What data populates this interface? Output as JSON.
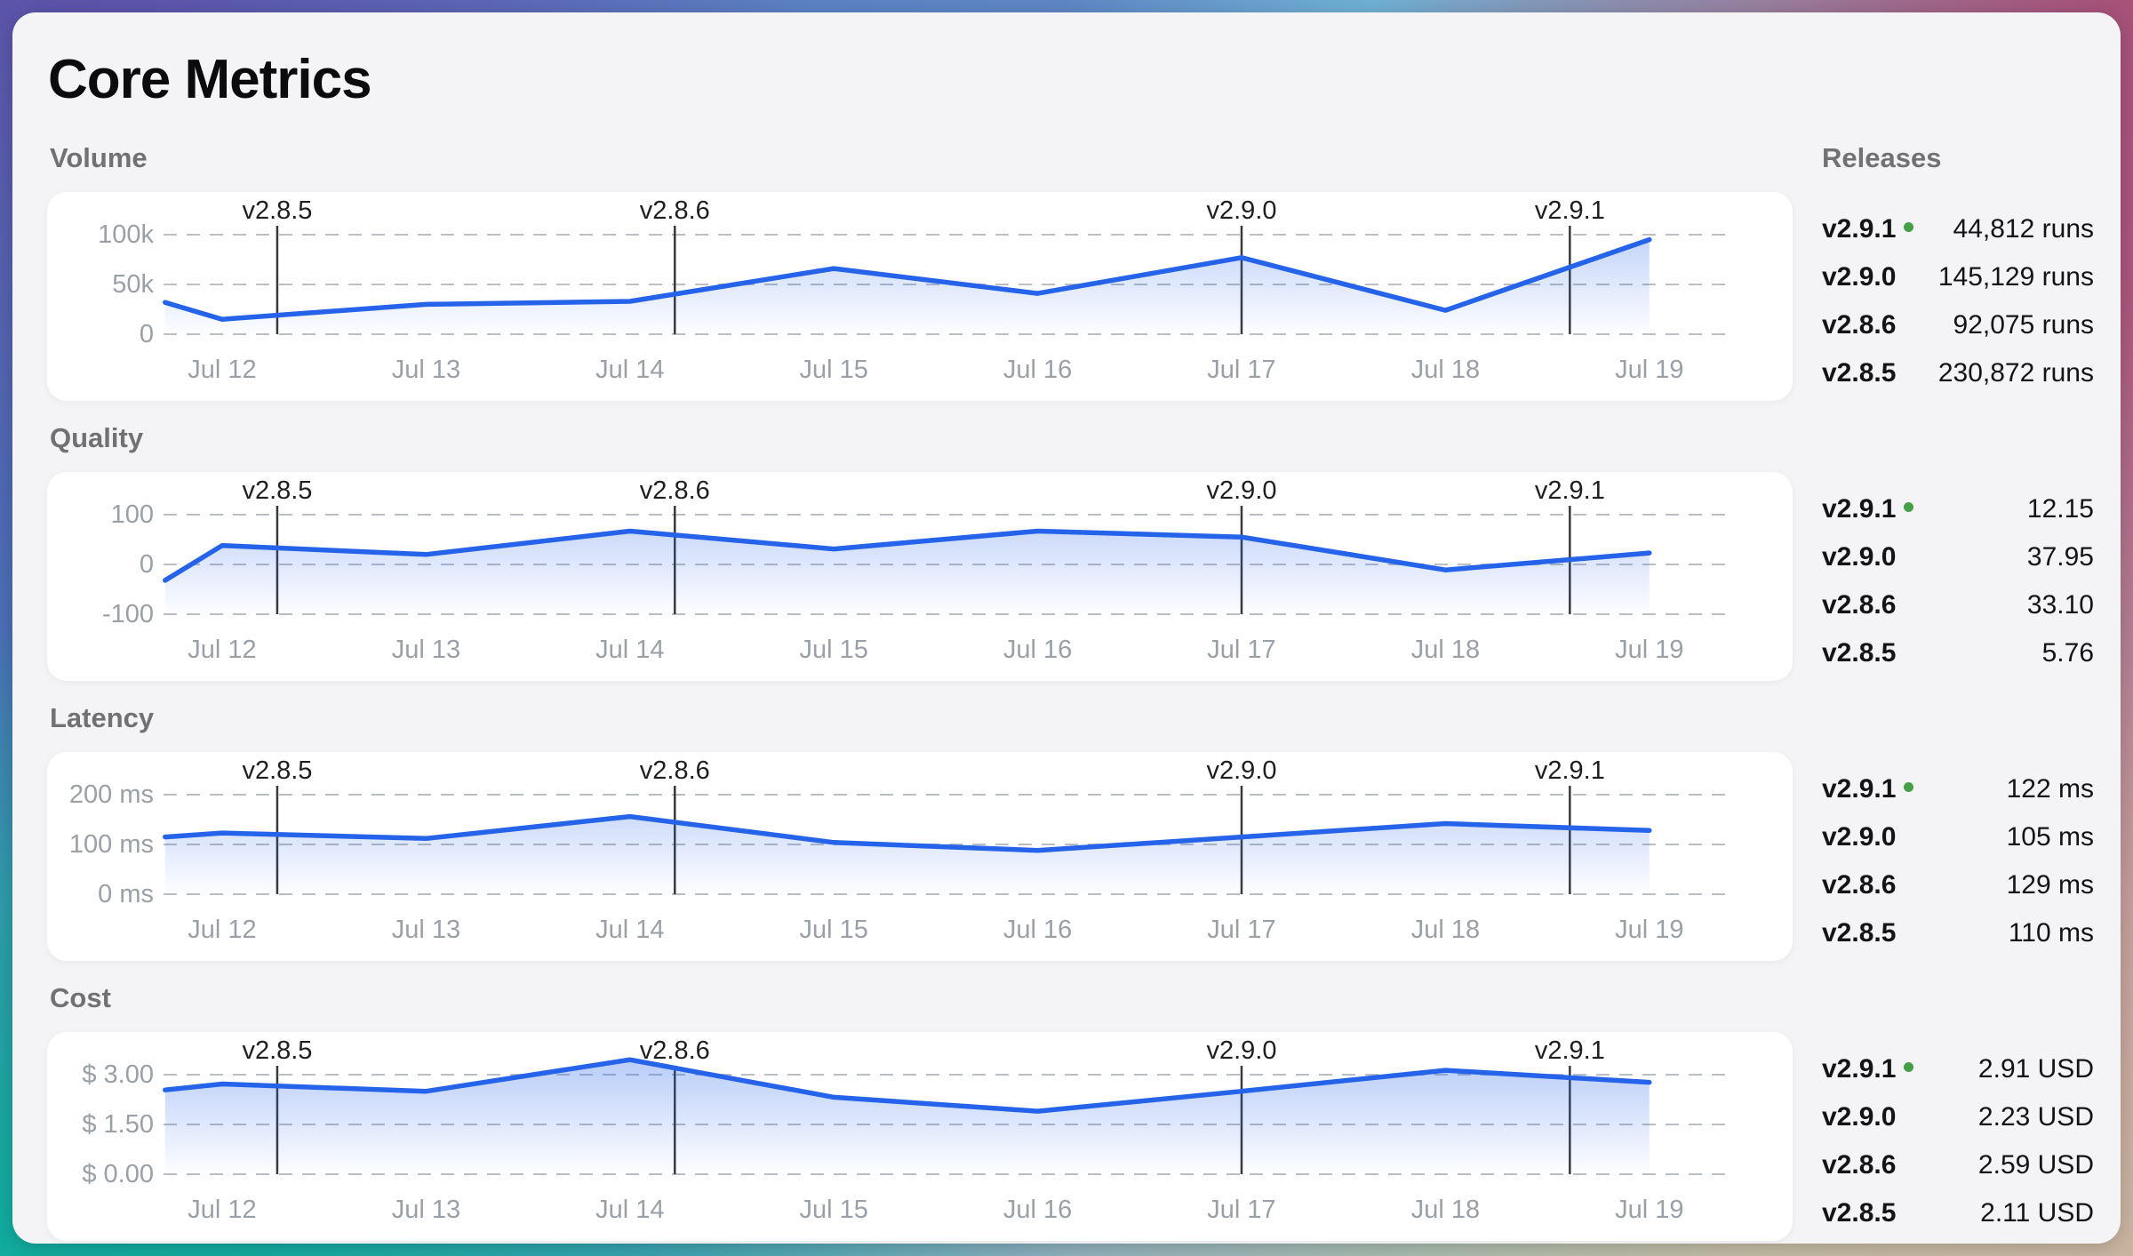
{
  "title": "Core Metrics",
  "releases_title": "Releases",
  "colors": {
    "line": "#2563eb",
    "area_fill": "#2563eb",
    "grid": "#b9bdc4",
    "marker_line": "#36383b",
    "current_release_dot": "#43a047",
    "card_background": "#ffffff",
    "page_background": "#f4f4f6"
  },
  "release_markers": [
    {
      "label": "v2.8.5",
      "day": 12.27
    },
    {
      "label": "v2.8.6",
      "day": 14.22
    },
    {
      "label": "v2.9.0",
      "day": 17.0
    },
    {
      "label": "v2.9.1",
      "day": 18.61
    }
  ],
  "chart_data": [
    {
      "type": "area",
      "title": "Volume",
      "x_labels": [
        "Jul 12",
        "Jul 13",
        "Jul 14",
        "Jul 15",
        "Jul 16",
        "Jul 17",
        "Jul 18",
        "Jul 19"
      ],
      "x_days": [
        12,
        13,
        14,
        15,
        16,
        17,
        18,
        19
      ],
      "y_ticks": [
        {
          "label": "100k",
          "value": 100000
        },
        {
          "label": "50k",
          "value": 50000
        },
        {
          "label": "0",
          "value": 0
        }
      ],
      "y_top": 100000,
      "y_bottom": 0,
      "grid": true,
      "points": [
        {
          "day": 11.72,
          "value": 32000
        },
        {
          "day": 12,
          "value": 15000
        },
        {
          "day": 13,
          "value": 30000
        },
        {
          "day": 14,
          "value": 33000
        },
        {
          "day": 15,
          "value": 66000
        },
        {
          "day": 16,
          "value": 41000
        },
        {
          "day": 17,
          "value": 77000
        },
        {
          "day": 18,
          "value": 24000
        },
        {
          "day": 19,
          "value": 95000
        }
      ],
      "releases": [
        {
          "version": "v2.9.1",
          "current": true,
          "value": "44,812 runs"
        },
        {
          "version": "v2.9.0",
          "current": false,
          "value": "145,129 runs"
        },
        {
          "version": "v2.8.6",
          "current": false,
          "value": "92,075 runs"
        },
        {
          "version": "v2.8.5",
          "current": false,
          "value": "230,872 runs"
        }
      ]
    },
    {
      "type": "area",
      "title": "Quality",
      "x_labels": [
        "Jul 12",
        "Jul 13",
        "Jul 14",
        "Jul 15",
        "Jul 16",
        "Jul 17",
        "Jul 18",
        "Jul 19"
      ],
      "x_days": [
        12,
        13,
        14,
        15,
        16,
        17,
        18,
        19
      ],
      "y_ticks": [
        {
          "label": "100",
          "value": 100
        },
        {
          "label": "0",
          "value": 0
        },
        {
          "label": "-100",
          "value": -100
        }
      ],
      "y_top": 100,
      "y_bottom": -100,
      "grid": true,
      "points": [
        {
          "day": 11.72,
          "value": -32
        },
        {
          "day": 12,
          "value": 38
        },
        {
          "day": 13,
          "value": 20
        },
        {
          "day": 14,
          "value": 67
        },
        {
          "day": 15,
          "value": 31
        },
        {
          "day": 16,
          "value": 67
        },
        {
          "day": 17,
          "value": 55
        },
        {
          "day": 18,
          "value": -11
        },
        {
          "day": 19,
          "value": 23
        }
      ],
      "releases": [
        {
          "version": "v2.9.1",
          "current": true,
          "value": "12.15"
        },
        {
          "version": "v2.9.0",
          "current": false,
          "value": "37.95"
        },
        {
          "version": "v2.8.6",
          "current": false,
          "value": "33.10"
        },
        {
          "version": "v2.8.5",
          "current": false,
          "value": "5.76"
        }
      ]
    },
    {
      "type": "area",
      "title": "Latency",
      "x_labels": [
        "Jul 12",
        "Jul 13",
        "Jul 14",
        "Jul 15",
        "Jul 16",
        "Jul 17",
        "Jul 18",
        "Jul 19"
      ],
      "x_days": [
        12,
        13,
        14,
        15,
        16,
        17,
        18,
        19
      ],
      "y_ticks": [
        {
          "label": "200 ms",
          "value": 200
        },
        {
          "label": "100 ms",
          "value": 100
        },
        {
          "label": "0 ms",
          "value": 0
        }
      ],
      "y_top": 200,
      "y_bottom": 0,
      "grid": true,
      "points": [
        {
          "day": 11.72,
          "value": 115
        },
        {
          "day": 12,
          "value": 123
        },
        {
          "day": 13,
          "value": 112
        },
        {
          "day": 14,
          "value": 156
        },
        {
          "day": 15,
          "value": 104
        },
        {
          "day": 16,
          "value": 88
        },
        {
          "day": 17,
          "value": 115
        },
        {
          "day": 18,
          "value": 142
        },
        {
          "day": 19,
          "value": 128
        }
      ],
      "releases": [
        {
          "version": "v2.9.1",
          "current": true,
          "value": "122 ms"
        },
        {
          "version": "v2.9.0",
          "current": false,
          "value": "105 ms"
        },
        {
          "version": "v2.8.6",
          "current": false,
          "value": "129 ms"
        },
        {
          "version": "v2.8.5",
          "current": false,
          "value": "110 ms"
        }
      ]
    },
    {
      "type": "area",
      "title": "Cost",
      "x_labels": [
        "Jul 12",
        "Jul 13",
        "Jul 14",
        "Jul 15",
        "Jul 16",
        "Jul 17",
        "Jul 18",
        "Jul 19"
      ],
      "x_days": [
        12,
        13,
        14,
        15,
        16,
        17,
        18,
        19
      ],
      "y_ticks": [
        {
          "label": "$ 3.00",
          "value": 3.0
        },
        {
          "label": "$ 1.50",
          "value": 1.5
        },
        {
          "label": "$ 0.00",
          "value": 0.0
        }
      ],
      "y_top": 3.0,
      "y_bottom": 0.0,
      "grid": true,
      "points": [
        {
          "day": 11.72,
          "value": 2.54
        },
        {
          "day": 12,
          "value": 2.72
        },
        {
          "day": 13,
          "value": 2.5
        },
        {
          "day": 14,
          "value": 3.45
        },
        {
          "day": 15,
          "value": 2.32
        },
        {
          "day": 16,
          "value": 1.9
        },
        {
          "day": 17,
          "value": 2.5
        },
        {
          "day": 18,
          "value": 3.13
        },
        {
          "day": 19,
          "value": 2.77
        }
      ],
      "releases": [
        {
          "version": "v2.9.1",
          "current": true,
          "value": "2.91 USD"
        },
        {
          "version": "v2.9.0",
          "current": false,
          "value": "2.23 USD"
        },
        {
          "version": "v2.8.6",
          "current": false,
          "value": "2.59 USD"
        },
        {
          "version": "v2.8.5",
          "current": false,
          "value": "2.11 USD"
        }
      ]
    }
  ]
}
